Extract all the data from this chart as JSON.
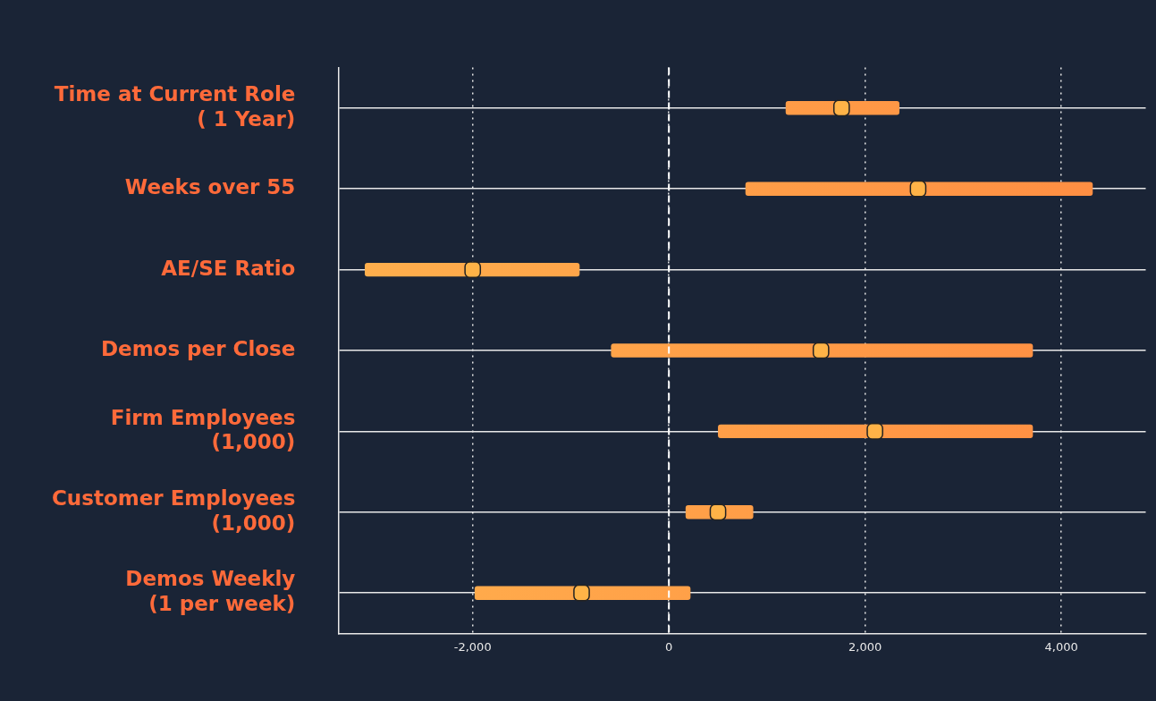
{
  "chart_data": {
    "type": "bar",
    "orientation": "horizontal",
    "categories": [
      "Time at Current Role ( 1 Year)",
      "Weeks over 55",
      "AE/SE Ratio",
      "Demos per Close",
      "Firm Employees (1,000)",
      "Customer Employees (1,000)",
      "Demos Weekly (1 per week)"
    ],
    "series": [
      {
        "color": "#ff8c42",
        "base": [
          1190,
          780,
          -3100,
          -590,
          500,
          170,
          -1980
        ],
        "values": [
          1160,
          3540,
          2190,
          4300,
          3210,
          690,
          2200
        ]
      },
      {
        "type": "scatter",
        "color": "#ffb347",
        "marker": "square",
        "values": [
          1760,
          2540,
          -2000,
          1550,
          2100,
          500,
          -890
        ]
      }
    ],
    "xlim": [
      -3370,
      4860
    ],
    "xticks": [
      {
        "value": -2000,
        "label": "-2,000"
      },
      0,
      {
        "value": 2000,
        "label": "2,000"
      },
      {
        "value": 4000,
        "label": "4,000"
      }
    ],
    "grid": true,
    "legend": false,
    "ref_lines": [
      {
        "axis": "x",
        "value": 0,
        "line_style": "dashed",
        "color": "#ffffff"
      }
    ]
  }
}
